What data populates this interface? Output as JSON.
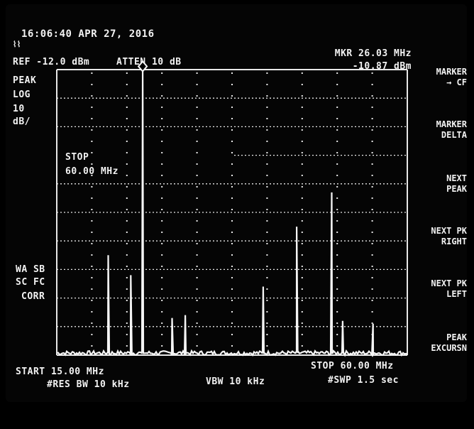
{
  "header": {
    "timestamp": "16:06:40 APR 27, 2016",
    "ref": "REF -12.0 dBm",
    "atten": "ATTEN 10 dB",
    "marker_readout": {
      "freq": "MKR 26.03 MHz",
      "level": "-10.87 dBm"
    }
  },
  "left_labels": {
    "detector": "PEAK",
    "scale": "LOG",
    "scale_value": "10",
    "scale_unit": "dB/",
    "flags": [
      "WA SB",
      "SC FC",
      "CORR"
    ]
  },
  "entry": {
    "label": "STOP",
    "value": "60.00 MHz"
  },
  "footer": {
    "start": "START 15.00 MHz",
    "rbw": "#RES BW 10 kHz",
    "vbw": "VBW 10 kHz",
    "stop": "STOP 60.00 MHz",
    "sweep": "#SWP 1.5 sec"
  },
  "softkeys": [
    {
      "lines": [
        "MARKER",
        "→ CF"
      ]
    },
    {
      "lines": [
        "MARKER",
        "DELTA"
      ]
    },
    {
      "lines": [
        "NEXT",
        "PEAK"
      ]
    },
    {
      "lines": [
        "NEXT PK",
        "RIGHT"
      ]
    },
    {
      "lines": [
        "NEXT PK",
        "LEFT"
      ]
    },
    {
      "lines": [
        "PEAK",
        "EXCURSN"
      ]
    }
  ],
  "trace": {
    "start_mhz": 15.0,
    "stop_mhz": 60.0,
    "ref_dbm": -12.0,
    "db_per_div": 10,
    "divisions": 10,
    "noise_floor_dbm": -112,
    "peaks": [
      {
        "mhz": 21.6,
        "dbm": -77
      },
      {
        "mhz": 24.5,
        "dbm": -84
      },
      {
        "mhz": 26.03,
        "dbm": -10.87
      },
      {
        "mhz": 29.8,
        "dbm": -99
      },
      {
        "mhz": 31.5,
        "dbm": -98
      },
      {
        "mhz": 41.5,
        "dbm": -88
      },
      {
        "mhz": 45.8,
        "dbm": -67
      },
      {
        "mhz": 50.3,
        "dbm": -55
      },
      {
        "mhz": 51.7,
        "dbm": -100
      },
      {
        "mhz": 55.6,
        "dbm": -101
      }
    ]
  }
}
